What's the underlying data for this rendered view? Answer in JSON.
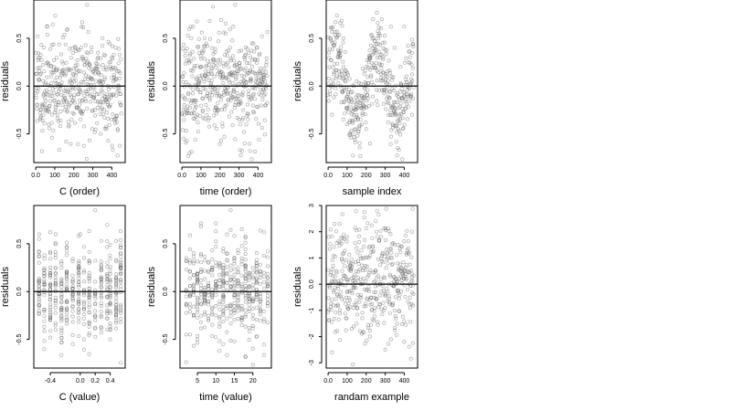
{
  "chart_data": [
    {
      "type": "scatter",
      "xlabel": "C (order)",
      "ylabel": "residuals",
      "xlim": [
        -10,
        470
      ],
      "ylim": [
        -0.8,
        0.9
      ],
      "xticks": [
        0,
        100,
        200,
        300,
        400
      ],
      "yticks": [
        -0.5,
        0.0,
        0.5
      ],
      "hline": 0,
      "n_points": 450,
      "pattern": "random",
      "seed": 11,
      "points": [
        [
          10,
          0.52
        ],
        [
          25,
          -0.35
        ],
        [
          60,
          0.62
        ],
        [
          95,
          0.2
        ],
        [
          115,
          -0.3
        ],
        [
          160,
          -0.58
        ],
        [
          200,
          0.18
        ],
        [
          240,
          0.62
        ],
        [
          270,
          0.85
        ],
        [
          310,
          -0.25
        ],
        [
          350,
          0.42
        ],
        [
          400,
          0.3
        ],
        [
          430,
          -0.45
        ],
        [
          440,
          0.08
        ]
      ]
    },
    {
      "type": "scatter",
      "xlabel": "time (order)",
      "ylabel": "residuals",
      "xlim": [
        -10,
        470
      ],
      "ylim": [
        -0.8,
        0.9
      ],
      "xticks": [
        0,
        100,
        200,
        300,
        400
      ],
      "yticks": [
        -0.5,
        0.0,
        0.5
      ],
      "hline": 0,
      "n_points": 450,
      "pattern": "random",
      "seed": 23,
      "points": [
        [
          10,
          -0.55
        ],
        [
          40,
          -0.7
        ],
        [
          80,
          -0.3
        ],
        [
          120,
          0.42
        ],
        [
          170,
          0.1
        ],
        [
          230,
          0.55
        ],
        [
          270,
          0.62
        ],
        [
          280,
          0.85
        ],
        [
          300,
          -0.35
        ],
        [
          330,
          -0.6
        ],
        [
          360,
          0.3
        ],
        [
          420,
          0.52
        ],
        [
          440,
          -0.2
        ]
      ]
    },
    {
      "type": "scatter",
      "xlabel": "sample index",
      "ylabel": "residuals",
      "xlim": [
        -10,
        470
      ],
      "ylim": [
        -0.8,
        0.9
      ],
      "xticks": [
        0,
        100,
        200,
        300,
        400
      ],
      "yticks": [
        -0.5,
        0.0,
        0.5
      ],
      "hline": 0,
      "n_points": 450,
      "pattern": "wave",
      "seed": 37,
      "points": [
        [
          20,
          -0.3
        ],
        [
          60,
          0.3
        ],
        [
          80,
          0.5
        ],
        [
          100,
          -0.4
        ],
        [
          150,
          0.05
        ],
        [
          200,
          -0.45
        ],
        [
          220,
          -0.6
        ],
        [
          260,
          -0.2
        ],
        [
          290,
          0.3
        ],
        [
          330,
          0.62
        ],
        [
          350,
          0.4
        ],
        [
          380,
          0.2
        ],
        [
          400,
          0.62
        ],
        [
          440,
          -0.3
        ]
      ]
    },
    {
      "type": "scatter",
      "xlabel": "C (value)",
      "ylabel": "residuals",
      "xlim": [
        -0.62,
        0.6
      ],
      "ylim": [
        -0.8,
        0.9
      ],
      "xticks": [
        -0.4,
        0.0,
        0.2,
        0.4
      ],
      "yticks": [
        -0.5,
        0.0,
        0.5
      ],
      "hline": 0,
      "n_points": 450,
      "pattern": "columns",
      "columns": [
        -0.55,
        -0.48,
        -0.4,
        -0.33,
        -0.25,
        -0.18,
        -0.1,
        -0.02,
        0.05,
        0.12,
        0.2,
        0.28,
        0.36,
        0.4,
        0.48,
        0.54
      ],
      "seed": 41,
      "points": [
        [
          -0.55,
          0.55
        ],
        [
          -0.4,
          0.62
        ],
        [
          -0.1,
          -0.55
        ],
        [
          0.0,
          0.6
        ],
        [
          0.05,
          -0.5
        ],
        [
          0.12,
          0.3
        ],
        [
          0.2,
          0.85
        ],
        [
          0.4,
          -0.5
        ],
        [
          0.54,
          0.2
        ]
      ]
    },
    {
      "type": "scatter",
      "xlabel": "time (value)",
      "ylabel": "residuals",
      "xlim": [
        0.3,
        25
      ],
      "ylim": [
        -0.8,
        0.9
      ],
      "xticks": [
        5,
        10,
        15,
        20
      ],
      "yticks": [
        -0.5,
        0.0,
        0.5
      ],
      "hline": 0,
      "n_points": 450,
      "pattern": "columns",
      "columns": [
        2,
        3,
        4,
        5,
        6,
        7,
        8,
        9,
        10,
        11,
        12,
        13,
        14,
        15,
        16,
        17,
        18,
        19,
        20,
        21,
        22,
        23,
        24
      ],
      "seed": 53,
      "points": [
        [
          2,
          -0.45
        ],
        [
          5,
          -0.5
        ],
        [
          8,
          0.3
        ],
        [
          12,
          0.42
        ],
        [
          14,
          0.85
        ],
        [
          17,
          -0.35
        ],
        [
          20,
          0.2
        ],
        [
          23,
          0.62
        ],
        [
          24,
          0.1
        ]
      ]
    },
    {
      "type": "scatter",
      "xlabel": "randam example",
      "ylabel": "residuals",
      "xlim": [
        -10,
        470
      ],
      "ylim": [
        -3.2,
        3.0
      ],
      "xticks": [
        0,
        100,
        200,
        300,
        400
      ],
      "yticks": [
        -3,
        -2,
        -1,
        0,
        1,
        2,
        3
      ],
      "hline": 0,
      "n_points": 450,
      "pattern": "normal",
      "seed": 67,
      "points": [
        [
          20,
          -2.6
        ],
        [
          60,
          2.3
        ],
        [
          100,
          1.8
        ],
        [
          150,
          -1.5
        ],
        [
          190,
          2.75
        ],
        [
          220,
          -2.0
        ],
        [
          250,
          2.4
        ],
        [
          300,
          -2.5
        ],
        [
          350,
          1.5
        ],
        [
          400,
          -2.2
        ],
        [
          440,
          2.0
        ]
      ]
    }
  ]
}
